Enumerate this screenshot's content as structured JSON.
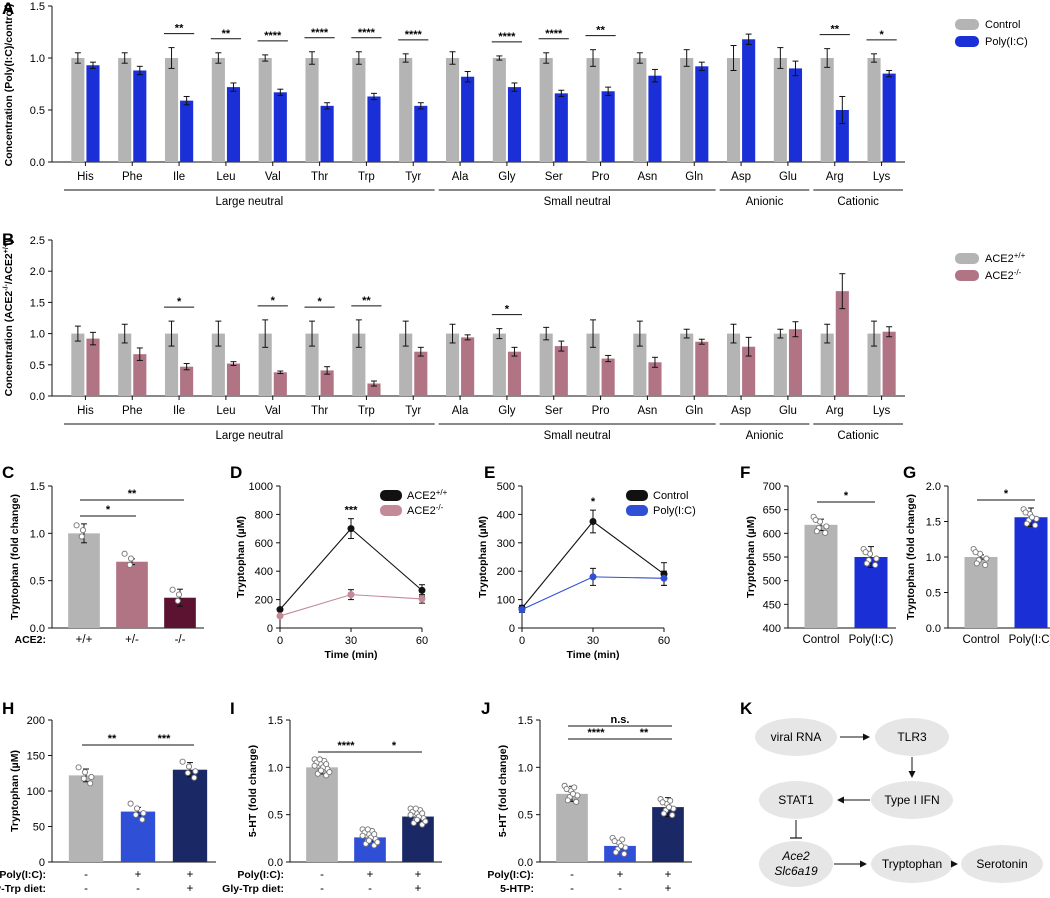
{
  "panels": {
    "A": {
      "label": "A",
      "ylabel": "Concentration (Poly(I:C)/control)",
      "ylim": [
        0,
        1.5
      ],
      "yticks": [
        "0.0",
        "0.5",
        "1.0",
        "1.5"
      ],
      "categories": [
        "His",
        "Phe",
        "Ile",
        "Leu",
        "Val",
        "Thr",
        "Trp",
        "Tyr",
        "Ala",
        "Gly",
        "Ser",
        "Pro",
        "Asn",
        "Gln",
        "Asp",
        "Glu",
        "Arg",
        "Lys"
      ],
      "series": [
        {
          "name": "Control",
          "color": "#b4b4b4",
          "values": [
            1,
            1,
            1,
            1,
            1,
            1,
            1,
            1,
            1,
            1,
            1,
            1,
            1,
            1,
            1,
            1,
            1,
            1
          ],
          "errors": [
            0.05,
            0.05,
            0.1,
            0.05,
            0.03,
            0.06,
            0.06,
            0.04,
            0.06,
            0.02,
            0.05,
            0.08,
            0.05,
            0.08,
            0.12,
            0.1,
            0.09,
            0.04
          ]
        },
        {
          "name": "Poly(I:C)",
          "color": "#1a2fd6",
          "values": [
            0.93,
            0.88,
            0.59,
            0.72,
            0.67,
            0.54,
            0.63,
            0.54,
            0.82,
            0.72,
            0.66,
            0.68,
            0.83,
            0.92,
            1.18,
            0.9,
            0.5,
            0.85
          ],
          "errors": [
            0.03,
            0.04,
            0.04,
            0.04,
            0.03,
            0.03,
            0.03,
            0.03,
            0.05,
            0.04,
            0.03,
            0.04,
            0.06,
            0.04,
            0.05,
            0.07,
            0.13,
            0.03
          ]
        }
      ],
      "significance": [
        "",
        "",
        "**",
        "**",
        "****",
        "****",
        "****",
        "****",
        "",
        "****",
        "****",
        "**",
        "",
        "",
        "",
        "",
        "**",
        "*"
      ],
      "groups": [
        {
          "label": "Large neutral",
          "from": 0,
          "to": 7
        },
        {
          "label": "Small neutral",
          "from": 8,
          "to": 13
        },
        {
          "label": "Anionic",
          "from": 14,
          "to": 15
        },
        {
          "label": "Cationic",
          "from": 16,
          "to": 17
        }
      ]
    },
    "B": {
      "label": "B",
      "ylabel": "Concentration (ACE2",
      "ylabel_sup1": "-/-",
      "ylabel_mid": "/ACE2",
      "ylabel_sup2": "+/+",
      "ylabel_end": ")",
      "ylim": [
        0,
        2.5
      ],
      "yticks": [
        "0.0",
        "0.5",
        "1.0",
        "1.5",
        "2.0",
        "2.5"
      ],
      "categories": [
        "His",
        "Phe",
        "Ile",
        "Leu",
        "Val",
        "Thr",
        "Trp",
        "Tyr",
        "Ala",
        "Gly",
        "Ser",
        "Pro",
        "Asn",
        "Gln",
        "Asp",
        "Glu",
        "Arg",
        "Lys"
      ],
      "series": [
        {
          "name": "ACE2",
          "sup": "+/+",
          "color": "#b4b4b4",
          "values": [
            1,
            1,
            1,
            1,
            1,
            1,
            1,
            1,
            1,
            1,
            1,
            1,
            1,
            1,
            1,
            1,
            1,
            1
          ],
          "errors": [
            0.12,
            0.15,
            0.2,
            0.2,
            0.22,
            0.2,
            0.22,
            0.2,
            0.15,
            0.08,
            0.1,
            0.22,
            0.2,
            0.07,
            0.15,
            0.07,
            0.15,
            0.2
          ]
        },
        {
          "name": "ACE2",
          "sup": "-/-",
          "color": "#b07485",
          "values": [
            0.92,
            0.67,
            0.47,
            0.52,
            0.38,
            0.41,
            0.2,
            0.71,
            0.94,
            0.71,
            0.8,
            0.6,
            0.54,
            0.87,
            0.79,
            1.07,
            1.68,
            1.03
          ],
          "errors": [
            0.1,
            0.1,
            0.05,
            0.03,
            0.02,
            0.06,
            0.04,
            0.07,
            0.04,
            0.07,
            0.08,
            0.05,
            0.08,
            0.04,
            0.15,
            0.12,
            0.28,
            0.08
          ]
        }
      ],
      "significance": [
        "",
        "",
        "*",
        "",
        "*",
        "*",
        "**",
        "",
        "",
        "*",
        "",
        "",
        "",
        "",
        "",
        "",
        "",
        ""
      ],
      "groups": [
        {
          "label": "Large neutral",
          "from": 0,
          "to": 7
        },
        {
          "label": "Small neutral",
          "from": 8,
          "to": 13
        },
        {
          "label": "Anionic",
          "from": 14,
          "to": 15
        },
        {
          "label": "Cationic",
          "from": 16,
          "to": 17
        }
      ]
    },
    "C": {
      "label": "C",
      "ylabel": "Tryptophan (fold change)",
      "ylim": [
        0,
        1.5
      ],
      "yticks": [
        "0.0",
        "0.5",
        "1.0",
        "1.5"
      ],
      "xrow_label": "ACE2:",
      "categories": [
        "+/+",
        "+/-",
        "-/-"
      ],
      "values": [
        1.0,
        0.7,
        0.32
      ],
      "errors": [
        0.1,
        0.03,
        0.09
      ],
      "colors": [
        "#b4b4b4",
        "#b07485",
        "#5c1231"
      ],
      "brackets": [
        {
          "a": 0,
          "b": 1,
          "text": "*"
        },
        {
          "a": 0,
          "b": 2,
          "text": "**"
        }
      ]
    },
    "D": {
      "label": "D",
      "ylabel": "Tryptophan (µM)",
      "xlabel": "Time (min)",
      "ylim": [
        0,
        1000
      ],
      "yticks": [
        "0",
        "200",
        "400",
        "600",
        "800",
        "1000"
      ],
      "x": [
        0,
        30,
        60
      ],
      "xticks": [
        "0",
        "30",
        "60"
      ],
      "series": [
        {
          "name": "ACE2",
          "sup": "+/+",
          "color": "#111111",
          "values": [
            130,
            700,
            265
          ],
          "errors": [
            10,
            70,
            40
          ]
        },
        {
          "name": "ACE2",
          "sup": "-/-",
          "color": "#c48a98",
          "values": [
            85,
            235,
            205
          ],
          "errors": [
            10,
            35,
            30
          ]
        }
      ],
      "annotation": "***"
    },
    "E": {
      "label": "E",
      "ylabel": "Tryptophan (µM)",
      "xlabel": "Time (min)",
      "ylim": [
        0,
        500
      ],
      "yticks": [
        "0",
        "100",
        "200",
        "300",
        "400",
        "500"
      ],
      "x": [
        0,
        30,
        60
      ],
      "xticks": [
        "0",
        "30",
        "60"
      ],
      "series": [
        {
          "name": "Control",
          "color": "#111111",
          "values": [
            70,
            375,
            190
          ],
          "errors": [
            10,
            40,
            40
          ]
        },
        {
          "name": "Poly(I:C)",
          "color": "#2e4fd6",
          "values": [
            65,
            180,
            175
          ],
          "errors": [
            10,
            30,
            25
          ]
        }
      ],
      "annotation": "*"
    },
    "F": {
      "label": "F",
      "ylabel": "Tryptophan (µM)",
      "ylim": [
        400,
        700
      ],
      "yticks": [
        "400",
        "450",
        "500",
        "550",
        "600",
        "650",
        "700"
      ],
      "categories": [
        "Control",
        "Poly(I:C)"
      ],
      "values": [
        618,
        550
      ],
      "errors": [
        12,
        22
      ],
      "colors": [
        "#b4b4b4",
        "#1a2fd6"
      ],
      "brackets": [
        {
          "a": 0,
          "b": 1,
          "text": "*"
        }
      ]
    },
    "G": {
      "label": "G",
      "ylabel": "Tryptophan (fold change)",
      "ylim": [
        0,
        2.0
      ],
      "yticks": [
        "0.0",
        "0.5",
        "1.0",
        "1.5",
        "2.0"
      ],
      "categories": [
        "Control",
        "Poly(I:C)"
      ],
      "values": [
        1.0,
        1.56
      ],
      "errors": [
        0.03,
        0.13
      ],
      "colors": [
        "#b4b4b4",
        "#1a2fd6"
      ],
      "brackets": [
        {
          "a": 0,
          "b": 1,
          "text": "*"
        }
      ]
    },
    "H": {
      "label": "H",
      "ylabel": "Tryptophan (µM)",
      "ylim": [
        0,
        200
      ],
      "yticks": [
        "0",
        "50",
        "100",
        "150",
        "200"
      ],
      "row_labels": [
        "Poly(I:C):",
        "Gly-Trp diet:"
      ],
      "rows": [
        [
          "-",
          "+",
          "+"
        ],
        [
          "-",
          "-",
          "+"
        ]
      ],
      "values": [
        122,
        71,
        130
      ],
      "errors": [
        9,
        6,
        10
      ],
      "colors": [
        "#b4b4b4",
        "#2e4fd6",
        "#1b2866"
      ],
      "brackets": [
        {
          "a": 0,
          "b": 1,
          "text": "**"
        },
        {
          "a": 1,
          "b": 2,
          "text": "***"
        }
      ]
    },
    "I": {
      "label": "I",
      "ylabel": "5-HT (fold change)",
      "ylim": [
        0,
        1.5
      ],
      "yticks": [
        "0.0",
        "0.5",
        "1.0",
        "1.5"
      ],
      "row_labels": [
        "Poly(I:C):",
        "Gly-Trp diet:"
      ],
      "rows": [
        [
          "-",
          "+",
          "+"
        ],
        [
          "-",
          "-",
          "+"
        ]
      ],
      "values": [
        1.0,
        0.26,
        0.48
      ],
      "errors": [
        0.07,
        0.04,
        0.06
      ],
      "colors": [
        "#b4b4b4",
        "#2e4fd6",
        "#1b2866"
      ],
      "brackets": [
        {
          "a": 0,
          "b": 1,
          "text": "****"
        },
        {
          "a": 1,
          "b": 2,
          "text": "*"
        }
      ]
    },
    "J": {
      "label": "J",
      "ylabel": "5-HT (fold change)",
      "ylim": [
        0,
        1.5
      ],
      "yticks": [
        "0.0",
        "0.5",
        "1.0",
        "1.5"
      ],
      "row_labels": [
        "Poly(I:C):",
        "5-HTP:"
      ],
      "rows": [
        [
          "-",
          "+",
          "+"
        ],
        [
          "-",
          "-",
          "+"
        ]
      ],
      "values": [
        0.72,
        0.17,
        0.58
      ],
      "errors": [
        0.08,
        0.02,
        0.1
      ],
      "colors": [
        "#b4b4b4",
        "#2e4fd6",
        "#1b2866"
      ],
      "brackets": [
        {
          "a": 0,
          "b": 1,
          "text": "****"
        },
        {
          "a": 1,
          "b": 2,
          "text": "**"
        },
        {
          "a": 0,
          "b": 2,
          "text": "n.s."
        }
      ]
    },
    "K": {
      "label": "K",
      "nodes": {
        "viral_rna": "viral RNA",
        "tlr3": "TLR3",
        "type1_ifn": "Type I IFN",
        "stat1": "STAT1",
        "ace2": "Ace2",
        "slc6a19": "Slc6a19",
        "tryptophan": "Tryptophan",
        "serotonin": "Serotonin"
      }
    }
  },
  "chart_data": [
    {
      "type": "bar",
      "title": "A",
      "categories": [
        "His",
        "Phe",
        "Ile",
        "Leu",
        "Val",
        "Thr",
        "Trp",
        "Tyr",
        "Ala",
        "Gly",
        "Ser",
        "Pro",
        "Asn",
        "Gln",
        "Asp",
        "Glu",
        "Arg",
        "Lys"
      ],
      "series": [
        {
          "name": "Control",
          "values": [
            1,
            1,
            1,
            1,
            1,
            1,
            1,
            1,
            1,
            1,
            1,
            1,
            1,
            1,
            1,
            1,
            1,
            1
          ]
        },
        {
          "name": "Poly(I:C)",
          "values": [
            0.93,
            0.88,
            0.59,
            0.72,
            0.67,
            0.54,
            0.63,
            0.54,
            0.82,
            0.72,
            0.66,
            0.68,
            0.83,
            0.92,
            1.18,
            0.9,
            0.5,
            0.85
          ]
        }
      ],
      "ylabel": "Concentration (Poly(I:C)/control)",
      "ylim": [
        0,
        1.5
      ]
    },
    {
      "type": "bar",
      "title": "B",
      "categories": [
        "His",
        "Phe",
        "Ile",
        "Leu",
        "Val",
        "Thr",
        "Trp",
        "Tyr",
        "Ala",
        "Gly",
        "Ser",
        "Pro",
        "Asn",
        "Gln",
        "Asp",
        "Glu",
        "Arg",
        "Lys"
      ],
      "series": [
        {
          "name": "ACE2+/+",
          "values": [
            1,
            1,
            1,
            1,
            1,
            1,
            1,
            1,
            1,
            1,
            1,
            1,
            1,
            1,
            1,
            1,
            1,
            1
          ]
        },
        {
          "name": "ACE2-/-",
          "values": [
            0.92,
            0.67,
            0.47,
            0.52,
            0.38,
            0.41,
            0.2,
            0.71,
            0.94,
            0.71,
            0.8,
            0.6,
            0.54,
            0.87,
            0.79,
            1.07,
            1.68,
            1.03
          ]
        }
      ],
      "ylabel": "Concentration (ACE2-/-/ACE2+/+)",
      "ylim": [
        0,
        2.5
      ]
    },
    {
      "type": "bar",
      "title": "C",
      "categories": [
        "+/+",
        "+/-",
        "-/-"
      ],
      "values": [
        1.0,
        0.7,
        0.32
      ],
      "ylabel": "Tryptophan (fold change)",
      "ylim": [
        0,
        1.5
      ]
    },
    {
      "type": "line",
      "title": "D",
      "x": [
        0,
        30,
        60
      ],
      "series": [
        {
          "name": "ACE2+/+",
          "values": [
            130,
            700,
            265
          ]
        },
        {
          "name": "ACE2-/-",
          "values": [
            85,
            235,
            205
          ]
        }
      ],
      "xlabel": "Time (min)",
      "ylabel": "Tryptophan (µM)",
      "ylim": [
        0,
        1000
      ]
    },
    {
      "type": "line",
      "title": "E",
      "x": [
        0,
        30,
        60
      ],
      "series": [
        {
          "name": "Control",
          "values": [
            70,
            375,
            190
          ]
        },
        {
          "name": "Poly(I:C)",
          "values": [
            65,
            180,
            175
          ]
        }
      ],
      "xlabel": "Time (min)",
      "ylabel": "Tryptophan (µM)",
      "ylim": [
        0,
        500
      ]
    },
    {
      "type": "bar",
      "title": "F",
      "categories": [
        "Control",
        "Poly(I:C)"
      ],
      "values": [
        618,
        550
      ],
      "ylabel": "Tryptophan (µM)",
      "ylim": [
        400,
        700
      ]
    },
    {
      "type": "bar",
      "title": "G",
      "categories": [
        "Control",
        "Poly(I:C)"
      ],
      "values": [
        1.0,
        1.56
      ],
      "ylabel": "Tryptophan (fold change)",
      "ylim": [
        0,
        2.0
      ]
    },
    {
      "type": "bar",
      "title": "H",
      "categories": [
        "-/-",
        "+/-",
        "+/+"
      ],
      "values": [
        122,
        71,
        130
      ],
      "ylabel": "Tryptophan (µM)",
      "ylim": [
        0,
        200
      ]
    },
    {
      "type": "bar",
      "title": "I",
      "categories": [
        "-/-",
        "+/-",
        "+/+"
      ],
      "values": [
        1.0,
        0.26,
        0.48
      ],
      "ylabel": "5-HT (fold change)",
      "ylim": [
        0,
        1.5
      ]
    },
    {
      "type": "bar",
      "title": "J",
      "categories": [
        "-/-",
        "+/-",
        "+/+"
      ],
      "values": [
        0.72,
        0.17,
        0.58
      ],
      "ylabel": "5-HT (fold change)",
      "ylim": [
        0,
        1.5
      ]
    }
  ]
}
